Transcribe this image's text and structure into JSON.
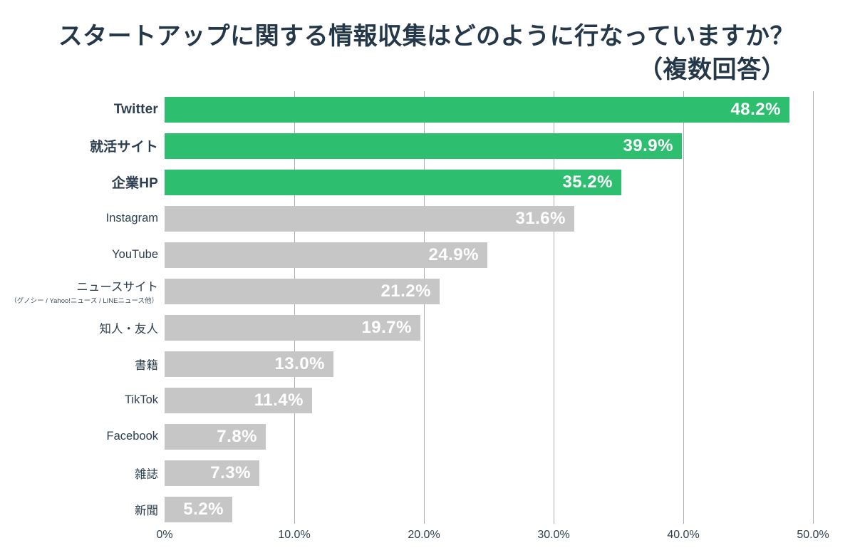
{
  "title": {
    "line1": "スタートアップに関する情報収集はどのように行なっていますか？",
    "line2": "（複数回答）"
  },
  "colors": {
    "bar_highlight": "#2EBE70",
    "bar_default": "#C6C6C6",
    "title_text": "#25384A",
    "label_text": "#2C3E50",
    "tick_text": "#2E4050",
    "grid": "#8A97A2",
    "value_text": "#FFFFFF"
  },
  "chart_data": {
    "type": "bar",
    "orientation": "horizontal",
    "title": "スタートアップに関する情報収集はどのように行なっていますか？（複数回答）",
    "xlim": [
      0,
      50
    ],
    "grid": true,
    "x_ticks": [
      "0%",
      "10.0%",
      "20.0%",
      "30.0%",
      "40.0%",
      "50.0%"
    ],
    "series": [
      {
        "label": "Twitter",
        "sublabel": "",
        "value": 48.2,
        "display": "48.2%",
        "highlight": true
      },
      {
        "label": "就活サイト",
        "sublabel": "",
        "value": 39.9,
        "display": "39.9%",
        "highlight": true
      },
      {
        "label": "企業HP",
        "sublabel": "",
        "value": 35.2,
        "display": "35.2%",
        "highlight": true
      },
      {
        "label": "Instagram",
        "sublabel": "",
        "value": 31.6,
        "display": "31.6%",
        "highlight": false
      },
      {
        "label": "YouTube",
        "sublabel": "",
        "value": 24.9,
        "display": "24.9%",
        "highlight": false
      },
      {
        "label": "ニュースサイト",
        "sublabel": "（グノシー / Yahoo!ニュース / LINEニュース他）",
        "value": 21.2,
        "display": "21.2%",
        "highlight": false
      },
      {
        "label": "知人・友人",
        "sublabel": "",
        "value": 19.7,
        "display": "19.7%",
        "highlight": false
      },
      {
        "label": "書籍",
        "sublabel": "",
        "value": 13.0,
        "display": "13.0%",
        "highlight": false
      },
      {
        "label": "TikTok",
        "sublabel": "",
        "value": 11.4,
        "display": "11.4%",
        "highlight": false
      },
      {
        "label": "Facebook",
        "sublabel": "",
        "value": 7.8,
        "display": "7.8%",
        "highlight": false
      },
      {
        "label": "雑誌",
        "sublabel": "",
        "value": 7.3,
        "display": "7.3%",
        "highlight": false
      },
      {
        "label": "新聞",
        "sublabel": "",
        "value": 5.2,
        "display": "5.2%",
        "highlight": false
      }
    ]
  }
}
